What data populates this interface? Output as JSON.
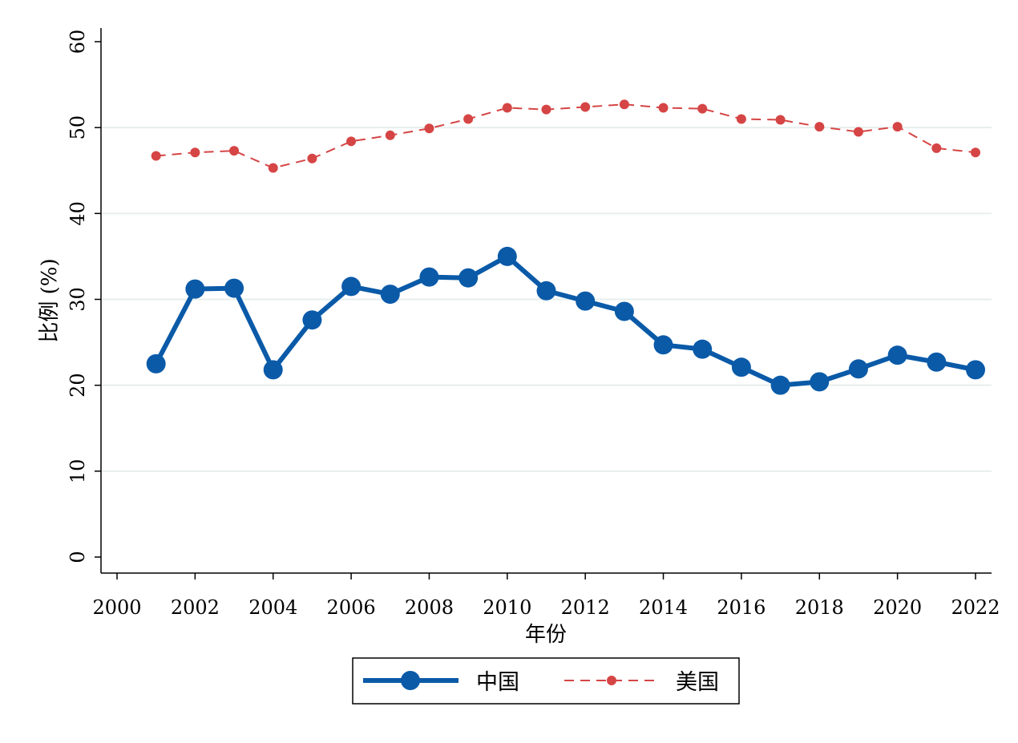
{
  "chart_data": {
    "type": "line",
    "title": "",
    "xlabel": "年份",
    "ylabel": "比例 (%)",
    "xlim": [
      2000,
      2022
    ],
    "ylim": [
      0,
      60
    ],
    "xticks": [
      2000,
      2002,
      2004,
      2006,
      2008,
      2010,
      2012,
      2014,
      2016,
      2018,
      2020,
      2022
    ],
    "yticks": [
      0,
      10,
      20,
      30,
      40,
      50,
      60
    ],
    "grid": true,
    "legend_position": "bottom",
    "x": [
      2001,
      2002,
      2003,
      2004,
      2005,
      2006,
      2007,
      2008,
      2009,
      2010,
      2011,
      2012,
      2013,
      2014,
      2015,
      2016,
      2017,
      2018,
      2019,
      2020,
      2021,
      2022
    ],
    "series": [
      {
        "name": "中国",
        "color": "#0a5aa8",
        "style": "solid",
        "values": [
          22.5,
          31.2,
          31.3,
          21.8,
          27.6,
          31.5,
          30.6,
          32.6,
          32.5,
          35.0,
          31.0,
          29.8,
          28.6,
          24.7,
          24.2,
          22.1,
          20.0,
          20.4,
          21.9,
          23.5,
          22.7,
          21.8
        ]
      },
      {
        "name": "美国",
        "color": "#d64545",
        "style": "dashed",
        "values": [
          46.7,
          47.1,
          47.3,
          45.3,
          46.4,
          48.4,
          49.1,
          49.9,
          51.0,
          52.3,
          52.1,
          52.4,
          52.7,
          52.3,
          52.2,
          51.0,
          50.9,
          50.1,
          49.5,
          50.1,
          47.6,
          47.1
        ]
      }
    ]
  }
}
